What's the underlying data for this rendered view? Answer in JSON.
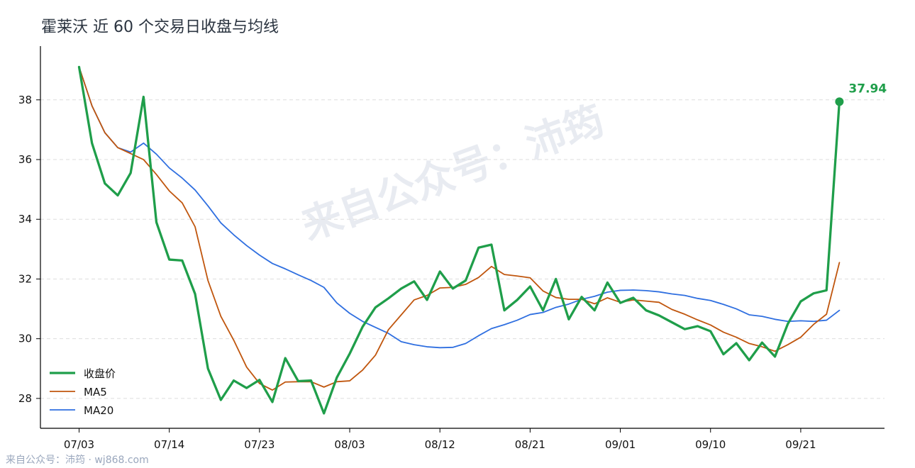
{
  "page": {
    "title": "霍莱沃 近 60 个交易日收盘与均线",
    "watermark": "来自公众号：沛筠",
    "footer": "来自公众号：沛筠 · wj868.com"
  },
  "colors": {
    "close": "#1f9e4a",
    "ma5": "#c0560e",
    "ma20": "#2f6fe0",
    "grid": "#dddddd",
    "axis": "#000000"
  },
  "chart_data": {
    "type": "line",
    "title": "霍莱沃 近 60 个交易日收盘与均线",
    "x_tick_labels": [
      "07/03",
      "07/14",
      "07/23",
      "08/03",
      "08/12",
      "08/21",
      "09/01",
      "09/10",
      "09/21"
    ],
    "x_tick_indices": [
      0,
      7,
      14,
      21,
      28,
      35,
      42,
      49,
      56
    ],
    "y_ticks": [
      28,
      30,
      32,
      34,
      36,
      38
    ],
    "ylim": [
      27.0,
      39.8
    ],
    "xlim": [
      -3,
      62.5
    ],
    "grid": "y-dashed",
    "legend_position": "lower-left",
    "last_value_label": "37.94",
    "series": [
      {
        "name": "收盘价",
        "values": [
          39.1,
          36.55,
          35.2,
          34.8,
          35.55,
          38.1,
          33.9,
          32.65,
          32.62,
          31.5,
          29.0,
          27.95,
          28.6,
          28.35,
          28.62,
          27.88,
          29.35,
          28.58,
          28.6,
          27.5,
          28.7,
          29.5,
          30.4,
          31.05,
          31.35,
          31.68,
          31.92,
          31.3,
          32.25,
          31.68,
          31.95,
          33.05,
          33.15,
          30.95,
          31.3,
          31.75,
          30.95,
          32.0,
          30.65,
          31.4,
          30.95,
          31.88,
          31.2,
          31.37,
          30.95,
          30.78,
          30.55,
          30.32,
          30.42,
          30.25,
          29.48,
          29.85,
          29.28,
          29.87,
          29.4,
          30.5,
          31.25,
          31.52,
          31.62,
          37.94
        ],
        "line_width": 3.3
      },
      {
        "name": "MA5",
        "values": [
          39.1,
          37.8,
          36.9,
          36.4,
          36.2,
          36.0,
          35.5,
          34.95,
          34.55,
          33.75,
          31.95,
          30.75,
          29.95,
          29.05,
          28.5,
          28.28,
          28.55,
          28.56,
          28.56,
          28.38,
          28.56,
          28.59,
          28.95,
          29.45,
          30.3,
          30.8,
          31.3,
          31.45,
          31.7,
          31.72,
          31.82,
          32.05,
          32.42,
          32.15,
          32.1,
          32.04,
          31.6,
          31.38,
          31.32,
          31.32,
          31.17,
          31.37,
          31.22,
          31.3,
          31.26,
          31.22,
          30.98,
          30.82,
          30.63,
          30.46,
          30.22,
          30.05,
          29.84,
          29.73,
          29.58,
          29.8,
          30.05,
          30.48,
          30.82,
          32.55
        ],
        "line_width": 1.8
      },
      {
        "name": "MA20",
        "values": [
          39.1,
          37.8,
          36.9,
          36.4,
          36.25,
          36.55,
          36.18,
          35.72,
          35.38,
          34.98,
          34.45,
          33.88,
          33.48,
          33.12,
          32.8,
          32.52,
          32.34,
          32.14,
          31.95,
          31.72,
          31.2,
          30.85,
          30.58,
          30.38,
          30.18,
          29.9,
          29.8,
          29.73,
          29.7,
          29.71,
          29.84,
          30.1,
          30.34,
          30.47,
          30.62,
          30.81,
          30.88,
          31.05,
          31.16,
          31.32,
          31.42,
          31.56,
          31.62,
          31.63,
          31.61,
          31.57,
          31.5,
          31.45,
          31.35,
          31.28,
          31.15,
          31.0,
          30.8,
          30.75,
          30.65,
          30.58,
          30.6,
          30.58,
          30.62,
          30.95
        ],
        "line_width": 1.8
      }
    ]
  }
}
